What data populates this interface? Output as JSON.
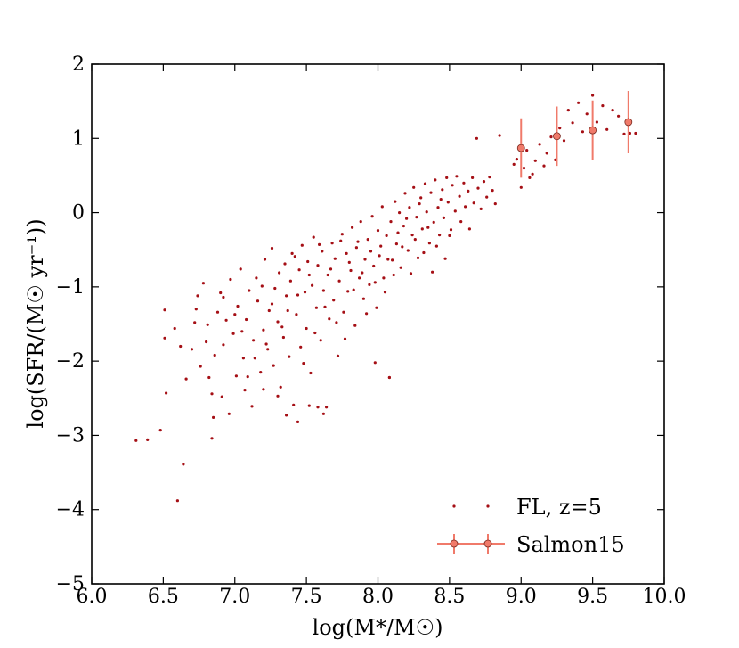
{
  "chart_data": {
    "type": "scatter",
    "xlabel": "log(M*/M☉)",
    "ylabel": "log(SFR/(M☉ yr⁻¹))",
    "xlim": [
      6.0,
      10.0
    ],
    "ylim": [
      -5,
      2
    ],
    "x_ticks": [
      "6.0",
      "6.5",
      "7.0",
      "7.5",
      "8.0",
      "8.5",
      "9.0",
      "9.5",
      "10.0"
    ],
    "y_ticks": [
      "−5",
      "−4",
      "−3",
      "−2",
      "−1",
      "0",
      "1",
      "2"
    ],
    "grid": false,
    "legend_position": "bottom-right",
    "series": [
      {
        "name": "FL, z=5",
        "style": "dots",
        "color": "#a50f15",
        "points": [
          [
            6.31,
            -3.07
          ],
          [
            6.39,
            -3.06
          ],
          [
            6.48,
            -2.93
          ],
          [
            6.51,
            -1.69
          ],
          [
            6.51,
            -1.31
          ],
          [
            6.52,
            -2.43
          ],
          [
            6.58,
            -1.56
          ],
          [
            6.6,
            -3.88
          ],
          [
            6.62,
            -1.8
          ],
          [
            6.64,
            -3.39
          ],
          [
            6.66,
            -2.24
          ],
          [
            6.7,
            -1.84
          ],
          [
            6.72,
            -1.48
          ],
          [
            6.73,
            -1.3
          ],
          [
            6.74,
            -1.12
          ],
          [
            6.76,
            -2.07
          ],
          [
            6.78,
            -0.95
          ],
          [
            6.8,
            -1.74
          ],
          [
            6.81,
            -1.51
          ],
          [
            6.82,
            -2.22
          ],
          [
            6.84,
            -3.04
          ],
          [
            6.85,
            -2.76
          ],
          [
            6.86,
            -1.92
          ],
          [
            6.88,
            -1.34
          ],
          [
            6.9,
            -1.08
          ],
          [
            6.91,
            -2.48
          ],
          [
            6.92,
            -1.78
          ],
          [
            6.94,
            -1.45
          ],
          [
            6.96,
            -2.71
          ],
          [
            6.97,
            -0.9
          ],
          [
            6.99,
            -1.63
          ],
          [
            7.01,
            -2.2
          ],
          [
            7.02,
            -1.26
          ],
          [
            7.04,
            -0.76
          ],
          [
            7.06,
            -1.96
          ],
          [
            7.07,
            -2.39
          ],
          [
            7.08,
            -1.44
          ],
          [
            7.1,
            -1.05
          ],
          [
            7.12,
            -2.61
          ],
          [
            7.13,
            -1.72
          ],
          [
            7.15,
            -0.88
          ],
          [
            7.16,
            -1.19
          ],
          [
            7.18,
            -2.15
          ],
          [
            7.2,
            -1.58
          ],
          [
            7.21,
            -0.63
          ],
          [
            7.23,
            -1.84
          ],
          [
            7.24,
            -1.32
          ],
          [
            7.26,
            -0.48
          ],
          [
            7.27,
            -2.06
          ],
          [
            7.28,
            -1.02
          ],
          [
            7.3,
            -1.47
          ],
          [
            7.31,
            -0.81
          ],
          [
            7.32,
            -2.35
          ],
          [
            7.34,
            -1.68
          ],
          [
            7.35,
            -0.69
          ],
          [
            7.36,
            -1.12
          ],
          [
            7.38,
            -1.94
          ],
          [
            7.39,
            -0.92
          ],
          [
            7.41,
            -2.59
          ],
          [
            7.42,
            -0.59
          ],
          [
            7.43,
            -1.37
          ],
          [
            7.45,
            -0.77
          ],
          [
            7.46,
            -1.81
          ],
          [
            7.47,
            -0.44
          ],
          [
            7.49,
            -1.07
          ],
          [
            7.5,
            -1.56
          ],
          [
            7.51,
            -0.66
          ],
          [
            7.53,
            -2.16
          ],
          [
            7.54,
            -0.98
          ],
          [
            7.55,
            -0.33
          ],
          [
            7.57,
            -1.28
          ],
          [
            7.58,
            -0.71
          ],
          [
            7.6,
            -1.72
          ],
          [
            7.61,
            -0.52
          ],
          [
            7.62,
            -1.05
          ],
          [
            7.64,
            -2.62
          ],
          [
            7.65,
            -0.84
          ],
          [
            7.66,
            -1.43
          ],
          [
            7.68,
            -0.41
          ],
          [
            7.69,
            -1.18
          ],
          [
            7.7,
            -0.62
          ],
          [
            7.72,
            -1.93
          ],
          [
            7.73,
            -0.92
          ],
          [
            7.75,
            -0.29
          ],
          [
            7.76,
            -1.34
          ],
          [
            7.78,
            -0.55
          ],
          [
            7.79,
            -1.06
          ],
          [
            7.81,
            -0.78
          ],
          [
            7.82,
            -0.2
          ],
          [
            7.84,
            -1.52
          ],
          [
            7.85,
            -0.47
          ],
          [
            7.87,
            -0.88
          ],
          [
            7.88,
            -0.12
          ],
          [
            7.9,
            -1.16
          ],
          [
            7.91,
            -0.63
          ],
          [
            7.93,
            -0.36
          ],
          [
            7.94,
            -0.97
          ],
          [
            7.96,
            -0.05
          ],
          [
            7.97,
            -0.72
          ],
          [
            7.99,
            -1.28
          ],
          [
            8.0,
            -0.24
          ],
          [
            8.01,
            -0.58
          ],
          [
            8.03,
            0.08
          ],
          [
            8.04,
            -0.88
          ],
          [
            8.06,
            -0.31
          ],
          [
            8.08,
            -2.22
          ],
          [
            8.09,
            -0.12
          ],
          [
            8.1,
            -0.64
          ],
          [
            8.12,
            0.15
          ],
          [
            8.13,
            -0.42
          ],
          [
            8.15,
            0.0
          ],
          [
            8.16,
            -0.74
          ],
          [
            8.18,
            -0.18
          ],
          [
            8.19,
            0.26
          ],
          [
            8.21,
            -0.51
          ],
          [
            8.22,
            0.07
          ],
          [
            8.24,
            -0.3
          ],
          [
            8.25,
            0.34
          ],
          [
            8.27,
            -0.06
          ],
          [
            8.28,
            -0.61
          ],
          [
            8.3,
            0.2
          ],
          [
            8.31,
            -0.22
          ],
          [
            8.33,
            0.39
          ],
          [
            8.34,
            0.01
          ],
          [
            8.36,
            -0.41
          ],
          [
            8.37,
            0.27
          ],
          [
            8.39,
            -0.13
          ],
          [
            8.4,
            0.44
          ],
          [
            8.42,
            0.07
          ],
          [
            8.43,
            -0.3
          ],
          [
            8.45,
            0.31
          ],
          [
            8.46,
            -0.07
          ],
          [
            8.48,
            0.47
          ],
          [
            8.49,
            0.14
          ],
          [
            8.51,
            -0.23
          ],
          [
            8.52,
            0.37
          ],
          [
            8.54,
            0.02
          ],
          [
            8.55,
            0.49
          ],
          [
            8.57,
            0.22
          ],
          [
            8.58,
            -0.12
          ],
          [
            8.6,
            0.4
          ],
          [
            8.61,
            0.08
          ],
          [
            8.63,
            0.29
          ],
          [
            8.64,
            -0.22
          ],
          [
            8.66,
            0.47
          ],
          [
            8.67,
            0.13
          ],
          [
            8.69,
            1.0
          ],
          [
            8.7,
            0.33
          ],
          [
            8.72,
            0.05
          ],
          [
            8.74,
            0.42
          ],
          [
            8.76,
            0.21
          ],
          [
            8.78,
            0.48
          ],
          [
            8.8,
            0.3
          ],
          [
            8.82,
            0.12
          ],
          [
            8.85,
            1.04
          ],
          [
            8.95,
            0.65
          ],
          [
            8.97,
            0.72
          ],
          [
            9.0,
            0.34
          ],
          [
            9.02,
            0.6
          ],
          [
            9.04,
            0.84
          ],
          [
            9.06,
            0.47
          ],
          [
            9.08,
            0.52
          ],
          [
            9.1,
            0.7
          ],
          [
            9.13,
            0.92
          ],
          [
            9.16,
            0.63
          ],
          [
            9.18,
            0.8
          ],
          [
            9.21,
            1.02
          ],
          [
            9.24,
            0.71
          ],
          [
            9.27,
            1.14
          ],
          [
            9.3,
            0.97
          ],
          [
            9.33,
            1.38
          ],
          [
            9.36,
            1.21
          ],
          [
            9.4,
            1.48
          ],
          [
            9.43,
            1.09
          ],
          [
            9.46,
            1.33
          ],
          [
            9.5,
            1.58
          ],
          [
            9.53,
            1.22
          ],
          [
            9.57,
            1.44
          ],
          [
            9.6,
            1.12
          ],
          [
            9.64,
            1.38
          ],
          [
            9.68,
            1.3
          ],
          [
            9.72,
            1.06
          ],
          [
            9.76,
            1.07
          ],
          [
            9.8,
            1.07
          ],
          [
            7.2,
            -2.38
          ],
          [
            7.3,
            -2.47
          ],
          [
            7.36,
            -2.73
          ],
          [
            7.44,
            -2.82
          ],
          [
            7.52,
            -2.6
          ],
          [
            7.58,
            -2.62
          ],
          [
            7.62,
            -2.71
          ],
          [
            7.98,
            -2.02
          ],
          [
            8.08,
            -2.22
          ],
          [
            6.84,
            -2.44
          ],
          [
            6.92,
            -1.14
          ],
          [
            7.0,
            -1.37
          ],
          [
            7.05,
            -1.6
          ],
          [
            7.09,
            -2.21
          ],
          [
            7.14,
            -1.96
          ],
          [
            7.19,
            -0.99
          ],
          [
            7.22,
            -1.77
          ],
          [
            7.26,
            -1.23
          ],
          [
            7.33,
            -1.54
          ],
          [
            7.37,
            -1.32
          ],
          [
            7.4,
            -0.55
          ],
          [
            7.44,
            -1.11
          ],
          [
            7.48,
            -2.03
          ],
          [
            7.52,
            -0.84
          ],
          [
            7.56,
            -1.62
          ],
          [
            7.59,
            -0.43
          ],
          [
            7.63,
            -1.27
          ],
          [
            7.67,
            -0.76
          ],
          [
            7.71,
            -1.48
          ],
          [
            7.74,
            -0.38
          ],
          [
            7.77,
            -1.7
          ],
          [
            7.8,
            -0.67
          ],
          [
            7.83,
            -1.04
          ],
          [
            7.86,
            -0.39
          ],
          [
            7.89,
            -0.81
          ],
          [
            7.92,
            -1.36
          ],
          [
            7.95,
            -0.52
          ],
          [
            7.98,
            -0.94
          ],
          [
            8.02,
            -0.45
          ],
          [
            8.05,
            -1.07
          ],
          [
            8.07,
            -0.63
          ],
          [
            8.11,
            -0.84
          ],
          [
            8.14,
            -0.27
          ],
          [
            8.17,
            -0.46
          ],
          [
            8.2,
            -0.08
          ],
          [
            8.23,
            -0.82
          ],
          [
            8.26,
            -0.36
          ],
          [
            8.29,
            0.12
          ],
          [
            8.32,
            -0.54
          ],
          [
            8.35,
            -0.2
          ],
          [
            8.38,
            -0.8
          ],
          [
            8.41,
            -0.45
          ],
          [
            8.44,
            0.18
          ],
          [
            8.47,
            -0.62
          ],
          [
            8.5,
            -0.31
          ]
        ]
      },
      {
        "name": "Salmon15",
        "style": "errorbar",
        "color": "#f07a6a",
        "points": [
          {
            "x": 9.0,
            "y": 0.87,
            "yerr": 0.4
          },
          {
            "x": 9.25,
            "y": 1.03,
            "yerr": 0.4
          },
          {
            "x": 9.5,
            "y": 1.11,
            "yerr": 0.4
          },
          {
            "x": 9.75,
            "y": 1.22,
            "yerr": 0.42
          }
        ]
      }
    ]
  }
}
